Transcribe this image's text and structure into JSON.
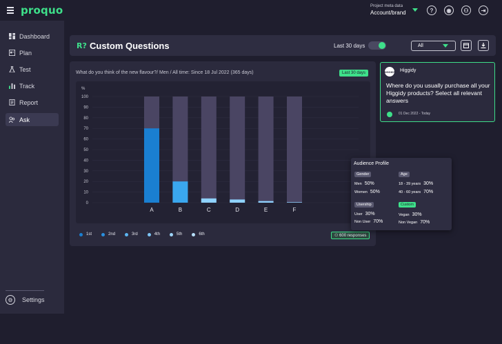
{
  "topbar": {
    "logo": "proquo",
    "meta_label": "Project meta data",
    "meta_value": "Account/brand",
    "icons": [
      "help-icon",
      "account-icon",
      "profile-icon",
      "logout-icon"
    ]
  },
  "sidebar": {
    "items": [
      {
        "label": "Dashboard",
        "icon": "dashboard-icon",
        "active": false
      },
      {
        "label": "Plan",
        "icon": "plan-icon",
        "active": false
      },
      {
        "label": "Test",
        "icon": "flask-icon",
        "active": false
      },
      {
        "label": "Track",
        "icon": "bar-chart-icon",
        "active": false
      },
      {
        "label": "Report",
        "icon": "report-icon",
        "active": false
      },
      {
        "label": "Ask",
        "icon": "ask-icon",
        "active": true
      }
    ],
    "settings_label": "Settings"
  },
  "header": {
    "title": "Custom Questions",
    "range_label": "Last 30 days",
    "toggle_on": true,
    "filter_value": "All"
  },
  "chart_card": {
    "question": "What do you think of the new flavour?/ Men / All time: Since 18 Jul 2022 (365 days)",
    "badge": "Last 30 days",
    "responses": "600 responses",
    "legend": [
      "1st",
      "2nd",
      "3rd",
      "4th",
      "5th",
      "6th"
    ]
  },
  "chart_data": {
    "type": "bar",
    "stacked": true,
    "ylabel": "%",
    "ylim": [
      0,
      100
    ],
    "yticks": [
      0,
      10,
      20,
      30,
      40,
      50,
      60,
      70,
      80,
      90,
      100
    ],
    "categories": [
      "A",
      "B",
      "C",
      "D",
      "E",
      "F"
    ],
    "values": [
      70,
      20,
      4,
      3,
      1.5,
      0.5
    ],
    "colors": [
      "#1a7fd1",
      "#3aa7ee",
      "#8fd2ff",
      "#8fd2ff",
      "#8fd2ff",
      "#8fd2ff"
    ],
    "remainder_color": "#4a4563",
    "grid": true
  },
  "question_card": {
    "brand_logo_text": "HIGGIDY",
    "brand": "Higgidy",
    "question": "Where do you usually purchase all your Higgidy products? Select all relevant answers",
    "date_range": "01 Dec 2022 - Today"
  },
  "audience": {
    "title": "Audience Profile",
    "gender": {
      "label": "Gender",
      "rows": [
        {
          "k": "Men",
          "v": "50%"
        },
        {
          "k": "Women",
          "v": "50%"
        }
      ]
    },
    "age": {
      "label": "Age",
      "rows": [
        {
          "k": "18 - 39 years",
          "v": "30%"
        },
        {
          "k": "40 - 60 years",
          "v": "70%"
        }
      ]
    },
    "usership": {
      "label": "Usership",
      "rows": [
        {
          "k": "User",
          "v": "30%"
        },
        {
          "k": "Non User",
          "v": "70%"
        }
      ]
    },
    "custom": {
      "label": "Custom",
      "rows": [
        {
          "k": "Vegan",
          "v": "30%"
        },
        {
          "k": "Non Vegan",
          "v": "70%"
        }
      ]
    }
  },
  "colors": {
    "accent": "#3ee08a",
    "background": "#1f1e2e",
    "panel": "#2b2a3d"
  }
}
